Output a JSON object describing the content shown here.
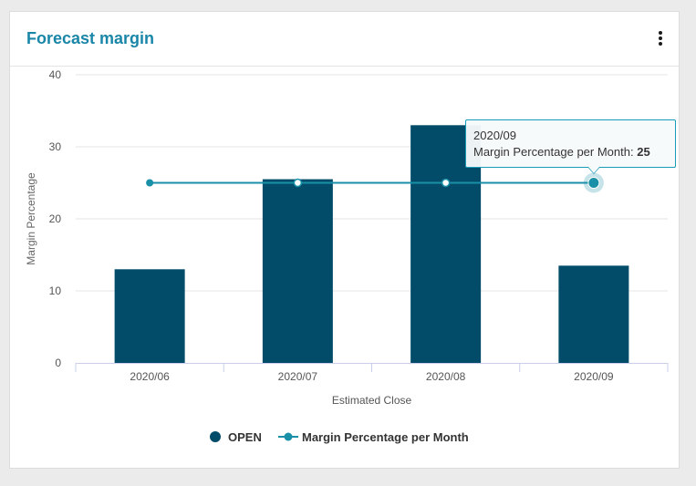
{
  "card": {
    "title": "Forecast margin"
  },
  "tooltip": {
    "category": "2020/09",
    "series_label": "Margin Percentage per Month:",
    "value": "25"
  },
  "colors": {
    "bar": "#024c69",
    "line": "#1a8fa8",
    "title": "#1a86a8"
  },
  "chart_data": {
    "type": "bar",
    "categories": [
      "2020/06",
      "2020/07",
      "2020/08",
      "2020/09"
    ],
    "series": [
      {
        "name": "OPEN",
        "type": "bar",
        "values": [
          13,
          25.5,
          33,
          13.5
        ]
      },
      {
        "name": "Margin Percentage per Month",
        "type": "line",
        "values": [
          25,
          25,
          25,
          25
        ]
      }
    ],
    "xlabel": "Estimated Close",
    "ylabel": "Margin Percentage",
    "ylim": [
      0,
      40
    ],
    "yticks": [
      "0",
      "10",
      "20",
      "30",
      "40"
    ],
    "grid": true,
    "legend": "bottom-center",
    "highlighted_category": "2020/09"
  }
}
